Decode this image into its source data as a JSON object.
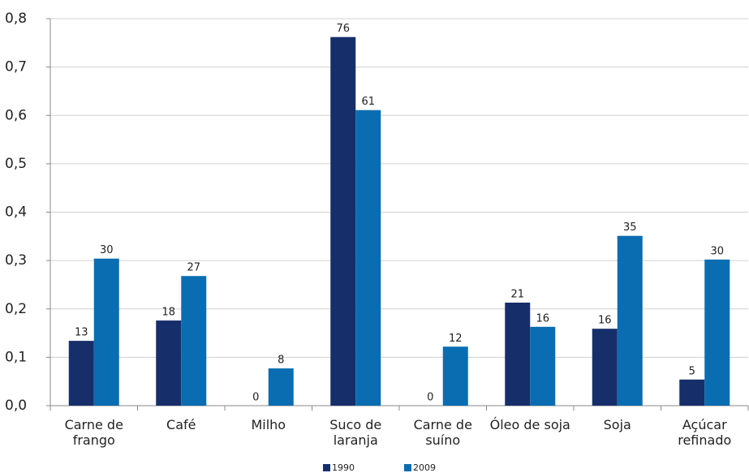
{
  "chart_data": {
    "type": "bar",
    "categories": [
      "Carne de frango",
      "Café",
      "Milho",
      "Suco de laranja",
      "Carne de suíno",
      "Óleo de soja",
      "Soja",
      "Açúcar refinado"
    ],
    "series": [
      {
        "name": "1990",
        "color": "#162f6a",
        "values": [
          0.134,
          0.176,
          0,
          0.762,
          0,
          0.213,
          0.159,
          0.054
        ],
        "value_labels": [
          "13",
          "18",
          "0",
          "76",
          "0",
          "21",
          "16",
          "5"
        ]
      },
      {
        "name": "2009",
        "color": "#0a6db1",
        "values": [
          0.304,
          0.268,
          0.077,
          0.611,
          0.122,
          0.163,
          0.351,
          0.302
        ],
        "value_labels": [
          "30",
          "27",
          "8",
          "61",
          "12",
          "16",
          "35",
          "30"
        ]
      }
    ],
    "ylim": [
      0,
      0.8
    ],
    "yticks": [
      {
        "value": 0,
        "label": "0,0"
      },
      {
        "value": 0.1,
        "label": "0,1"
      },
      {
        "value": 0.2,
        "label": "0,2"
      },
      {
        "value": 0.3,
        "label": "0,3"
      },
      {
        "value": 0.4,
        "label": "0,4"
      },
      {
        "value": 0.5,
        "label": "0,5"
      },
      {
        "value": 0.6,
        "label": "0,6"
      },
      {
        "value": 0.7,
        "label": "0,7"
      },
      {
        "value": 0.8,
        "label": "0,8"
      }
    ],
    "grid": true,
    "legend": "bottom"
  }
}
